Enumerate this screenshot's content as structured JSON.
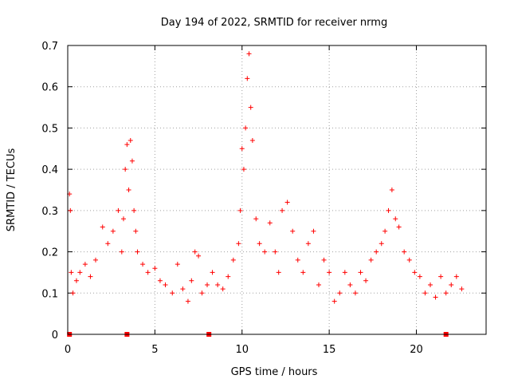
{
  "chart_data": {
    "type": "scatter",
    "title": "Day 194 of 2022, SRMTID for receiver nrmg",
    "xlabel": "GPS time / hours",
    "ylabel": "SRMTID / TECUs",
    "xlim": [
      0,
      24
    ],
    "ylim": [
      0,
      0.7
    ],
    "grid": true,
    "marker": "+",
    "xticks": [
      0,
      5,
      10,
      15,
      20
    ],
    "yticks": [
      0,
      0.1,
      0.2,
      0.3,
      0.4,
      0.5,
      0.6,
      0.7
    ],
    "xtick_labels": [
      "0",
      "5",
      "10",
      "15",
      "20"
    ],
    "ytick_labels": [
      "0",
      "0.1",
      "0.2",
      "0.3",
      "0.4",
      "0.5",
      "0.6",
      "0.7"
    ],
    "zero_markers_x": [
      0.1,
      3.4,
      8.1,
      21.7
    ],
    "series": [
      {
        "name": "SRMTID",
        "color": "#ff0000",
        "x": [
          0.1,
          0.15,
          0.2,
          0.3,
          0.5,
          0.7,
          1.0,
          1.3,
          1.6,
          2.0,
          2.3,
          2.6,
          2.9,
          3.1,
          3.2,
          3.3,
          3.4,
          3.5,
          3.6,
          3.7,
          3.8,
          3.9,
          4.0,
          4.3,
          4.6,
          5.0,
          5.3,
          5.6,
          6.0,
          6.3,
          6.6,
          6.9,
          7.1,
          7.3,
          7.5,
          7.7,
          8.0,
          8.3,
          8.6,
          8.9,
          9.2,
          9.5,
          9.8,
          9.9,
          10.0,
          10.1,
          10.2,
          10.3,
          10.4,
          10.5,
          10.6,
          10.8,
          11.0,
          11.3,
          11.6,
          11.9,
          12.1,
          12.3,
          12.6,
          12.9,
          13.2,
          13.5,
          13.8,
          14.1,
          14.4,
          14.7,
          15.0,
          15.3,
          15.6,
          15.9,
          16.2,
          16.5,
          16.8,
          17.1,
          17.4,
          17.7,
          18.0,
          18.2,
          18.4,
          18.6,
          18.8,
          19.0,
          19.3,
          19.6,
          19.9,
          20.2,
          20.5,
          20.8,
          21.1,
          21.4,
          21.7,
          22.0,
          22.3,
          22.6
        ],
        "y": [
          0.34,
          0.3,
          0.15,
          0.1,
          0.13,
          0.15,
          0.17,
          0.14,
          0.18,
          0.26,
          0.22,
          0.25,
          0.3,
          0.2,
          0.28,
          0.4,
          0.46,
          0.35,
          0.47,
          0.42,
          0.3,
          0.25,
          0.2,
          0.17,
          0.15,
          0.16,
          0.13,
          0.12,
          0.1,
          0.17,
          0.11,
          0.08,
          0.13,
          0.2,
          0.19,
          0.1,
          0.12,
          0.15,
          0.12,
          0.11,
          0.14,
          0.18,
          0.22,
          0.3,
          0.45,
          0.4,
          0.5,
          0.62,
          0.68,
          0.55,
          0.47,
          0.28,
          0.22,
          0.2,
          0.27,
          0.2,
          0.15,
          0.3,
          0.32,
          0.25,
          0.18,
          0.15,
          0.22,
          0.25,
          0.12,
          0.18,
          0.15,
          0.08,
          0.1,
          0.15,
          0.12,
          0.1,
          0.15,
          0.13,
          0.18,
          0.2,
          0.22,
          0.25,
          0.3,
          0.35,
          0.28,
          0.26,
          0.2,
          0.18,
          0.15,
          0.14,
          0.1,
          0.12,
          0.09,
          0.14,
          0.1,
          0.12,
          0.14,
          0.11
        ]
      }
    ]
  }
}
